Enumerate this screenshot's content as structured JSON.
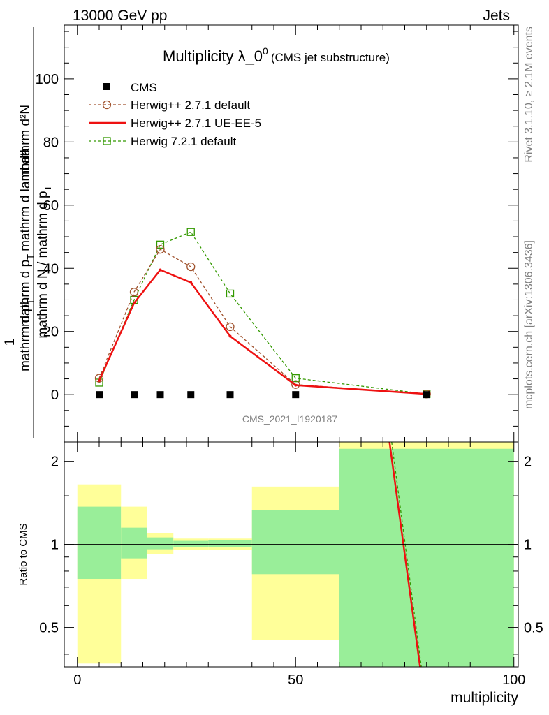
{
  "header": {
    "left": "13000 GeV pp",
    "right": "Jets"
  },
  "side_text": {
    "rivet": "Rivet 3.1.10, ≥ 2.1M events",
    "mcplots": "mcplots.cern.ch [arXiv:1306.3436]"
  },
  "chart_data": [
    {
      "type": "line",
      "title": "Multiplicity λ_0",
      "title_superscript": "0",
      "subtitle": "(CMS jet substructure)",
      "watermark": "CMS_2021_I1920187",
      "xlabel": "multiplicity",
      "ylabel_numerator_top": "mathrm d²N",
      "ylabel_numerator_bottom": "mathrm d p",
      "ylabel_numerator_tail": "mathrm d lambda",
      "ylabel_numerator_sub": "T",
      "ylabel_mid": "1",
      "ylabel_denominator": "mathrm d N / mathrm d p",
      "ylabel_denominator_tail": "mathrm d p",
      "ylabel_denominator_sub": "T",
      "xlim": [
        -3,
        101
      ],
      "ylim": [
        -15,
        117
      ],
      "y_ticks": [
        0,
        20,
        40,
        60,
        80,
        100
      ],
      "legend_position": "top-left",
      "series": [
        {
          "name": "CMS",
          "color": "#000000",
          "style": "markers-square",
          "x": [
            5,
            13,
            19,
            26,
            35,
            50,
            80
          ],
          "y": [
            0,
            0,
            0,
            0,
            0,
            0,
            0
          ]
        },
        {
          "name": "Herwig++ 2.7.1 default",
          "color": "#a0522d",
          "style": "dashed-circle",
          "x": [
            5,
            13,
            19,
            26,
            35,
            50,
            80
          ],
          "y": [
            5.2,
            32.5,
            46.0,
            40.5,
            21.5,
            3.2,
            0.2
          ]
        },
        {
          "name": "Herwig++ 2.7.1 UE-EE-5",
          "color": "#ee1111",
          "style": "solid",
          "x": [
            5,
            13,
            19,
            26,
            35,
            50,
            80
          ],
          "y": [
            4.5,
            29.0,
            39.5,
            35.5,
            18.5,
            3.0,
            0.2
          ]
        },
        {
          "name": "Herwig 7.2.1 default",
          "color": "#339900",
          "style": "dashed-square",
          "x": [
            5,
            13,
            19,
            26,
            35,
            50,
            80
          ],
          "y": [
            3.8,
            30.0,
            47.5,
            51.5,
            32.0,
            5.2,
            0.2
          ]
        }
      ]
    },
    {
      "type": "area",
      "ylabel": "Ratio to CMS",
      "xlabel": "multiplicity",
      "xlim": [
        -3,
        101
      ],
      "ylim": [
        0.36,
        2.35
      ],
      "y_scale": "log",
      "y_ticks": [
        0.5,
        1,
        2
      ],
      "x_ticks": [
        0,
        50,
        100
      ],
      "reference_line": 1,
      "bands": [
        {
          "x_lo": 0,
          "x_hi": 10,
          "inner": [
            0.75,
            1.37
          ],
          "outer": [
            0.37,
            1.65
          ]
        },
        {
          "x_lo": 10,
          "x_hi": 16,
          "inner": [
            0.89,
            1.15
          ],
          "outer": [
            0.75,
            1.37
          ]
        },
        {
          "x_lo": 16,
          "x_hi": 22,
          "inner": [
            0.96,
            1.06
          ],
          "outer": [
            0.92,
            1.1
          ]
        },
        {
          "x_lo": 22,
          "x_hi": 30,
          "inner": [
            0.975,
            1.03
          ],
          "outer": [
            0.955,
            1.05
          ]
        },
        {
          "x_lo": 30,
          "x_hi": 40,
          "inner": [
            0.975,
            1.035
          ],
          "outer": [
            0.955,
            1.05
          ]
        },
        {
          "x_lo": 40,
          "x_hi": 60,
          "inner": [
            0.78,
            1.33
          ],
          "outer": [
            0.45,
            1.62
          ]
        },
        {
          "x_lo": 60,
          "x_hi": 100,
          "inner": [
            0.36,
            2.22
          ],
          "outer": [
            0.36,
            2.35
          ]
        }
      ],
      "band_colors": {
        "inner": "#99ee99",
        "outer": "#ffff99"
      },
      "series": [
        {
          "name": "Herwig++ 2.7.1 default",
          "color": "#a0522d",
          "style": "dashed",
          "x": [
            71.5,
            78.5
          ],
          "y": [
            2.35,
            0.36
          ]
        },
        {
          "name": "Herwig++ 2.7.1 UE-EE-5",
          "color": "#ee1111",
          "style": "solid",
          "x": [
            71.5,
            78.5
          ],
          "y": [
            2.35,
            0.36
          ]
        },
        {
          "name": "Herwig 7.2.1 default",
          "color": "#339900",
          "style": "dashed",
          "x": [
            72.0,
            78.8
          ],
          "y": [
            2.35,
            0.36
          ]
        }
      ]
    }
  ]
}
